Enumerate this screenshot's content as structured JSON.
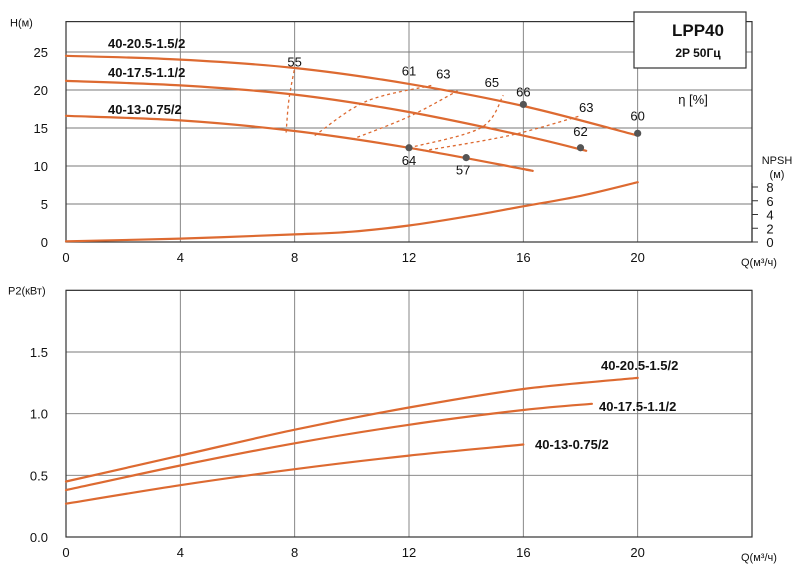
{
  "chart_data": [
    {
      "type": "line",
      "title": "",
      "info_box": {
        "model": "LPP40",
        "spec": "2P  50Гц"
      },
      "ylabel": "H(м)",
      "xlabel": "Q(м³/ч)",
      "xlim": [
        0,
        24
      ],
      "ylim": [
        0,
        29
      ],
      "x_ticks": [
        0,
        4,
        8,
        12,
        16,
        20
      ],
      "y_ticks": [
        0,
        5,
        10,
        15,
        20,
        25
      ],
      "efficiency_label": "η [%]",
      "series": [
        {
          "name": "40-20.5-1.5/2",
          "x": [
            0,
            4,
            8,
            12,
            16,
            20
          ],
          "y": [
            24.5,
            24.0,
            22.9,
            20.8,
            17.9,
            14.0
          ]
        },
        {
          "name": "40-17.5-1.1/2",
          "x": [
            0,
            4,
            8,
            12,
            16,
            18.2
          ],
          "y": [
            21.2,
            20.6,
            19.4,
            17.1,
            14.0,
            12.0
          ]
        },
        {
          "name": "40-13-0.75/2",
          "x": [
            0,
            4,
            8,
            12,
            16,
            16.1
          ],
          "y": [
            16.6,
            16.0,
            14.6,
            12.4,
            9.6,
            9.5
          ]
        }
      ],
      "efficiency_curves": [
        {
          "x": [
            7.7,
            7.8,
            8.0
          ],
          "y": [
            14.4,
            18.8,
            22.9
          ]
        },
        {
          "x": [
            8.7,
            10.5,
            12.8
          ],
          "y": [
            14.0,
            18.5,
            20.6
          ]
        },
        {
          "x": [
            10.0,
            12.0,
            13.7
          ],
          "y": [
            13.5,
            16.5,
            19.9
          ]
        },
        {
          "x": [
            12.0,
            14.5,
            15.3
          ],
          "y": [
            12.4,
            15.0,
            19.3
          ]
        },
        {
          "x": [
            12.5,
            15.5,
            18.0
          ],
          "y": [
            12.0,
            14.0,
            16.6
          ]
        }
      ],
      "efficiency_points": [
        {
          "x": 12,
          "y": 12.4,
          "label": "64"
        },
        {
          "x": 14,
          "y": 11.1,
          "label": "57"
        },
        {
          "x": 16,
          "y": 18.1,
          "label": "66"
        },
        {
          "x": 18,
          "y": 12.4,
          "label": "62"
        },
        {
          "x": 20,
          "y": 14.3,
          "label": "60"
        }
      ],
      "efficiency_labels": [
        {
          "x": 8,
          "y": 23.1,
          "label": "55"
        },
        {
          "x": 12,
          "y": 21.9,
          "label": "61"
        },
        {
          "x": 13.2,
          "y": 21.5,
          "label": "63"
        },
        {
          "x": 14.9,
          "y": 20.4,
          "label": "65"
        },
        {
          "x": 18.2,
          "y": 17.1,
          "label": "63"
        }
      ],
      "npsh": {
        "label": "NPSH",
        "unit": "(м)",
        "ticks": [
          0,
          2,
          4,
          6,
          8
        ],
        "x": [
          0,
          4,
          8,
          10,
          12,
          14,
          16,
          18,
          20
        ],
        "y": [
          0.1,
          0.5,
          1.1,
          1.5,
          2.4,
          3.7,
          5.2,
          6.7,
          8.7
        ]
      }
    },
    {
      "type": "line",
      "title": "",
      "ylabel": "P2(кВт)",
      "xlabel": "Q(м³/ч)",
      "xlim": [
        0,
        24
      ],
      "ylim": [
        0,
        2.0
      ],
      "x_ticks": [
        0,
        4,
        8,
        12,
        16,
        20
      ],
      "y_ticks": [
        "0.0",
        "0.5",
        "1.0",
        "1.5"
      ],
      "series": [
        {
          "name": "40-20.5-1.5/2",
          "x": [
            0,
            4,
            8,
            12,
            16,
            20
          ],
          "y": [
            0.45,
            0.66,
            0.87,
            1.05,
            1.2,
            1.29
          ]
        },
        {
          "name": "40-17.5-1.1/2",
          "x": [
            0,
            4,
            8,
            12,
            16,
            18.4
          ],
          "y": [
            0.38,
            0.58,
            0.76,
            0.91,
            1.03,
            1.08
          ]
        },
        {
          "name": "40-13-0.75/2",
          "x": [
            0,
            4,
            8,
            12,
            16
          ],
          "y": [
            0.27,
            0.42,
            0.55,
            0.66,
            0.75
          ]
        }
      ]
    }
  ]
}
